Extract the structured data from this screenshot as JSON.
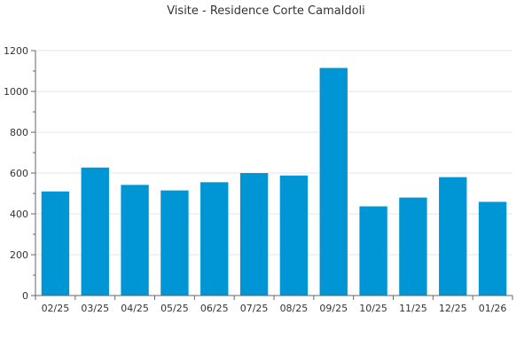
{
  "chart_data": {
    "type": "bar",
    "title": "Visite - Residence Corte Camaldoli",
    "xlabel": "",
    "ylabel": "",
    "categories": [
      "02/25",
      "03/25",
      "04/25",
      "05/25",
      "06/25",
      "07/25",
      "08/25",
      "09/25",
      "10/25",
      "11/25",
      "12/25",
      "01/26"
    ],
    "values": [
      510,
      627,
      542,
      515,
      555,
      600,
      588,
      1115,
      437,
      480,
      580,
      459
    ],
    "ylim": [
      0,
      1200
    ],
    "yticks": [
      "0",
      "200",
      "400",
      "600",
      "800",
      "1000",
      "1200"
    ],
    "grid": true,
    "legend": "none",
    "colors": {
      "bar": "#0096d6",
      "axis": "#666666",
      "grid": "#e6e6e6",
      "text": "#333333"
    }
  }
}
